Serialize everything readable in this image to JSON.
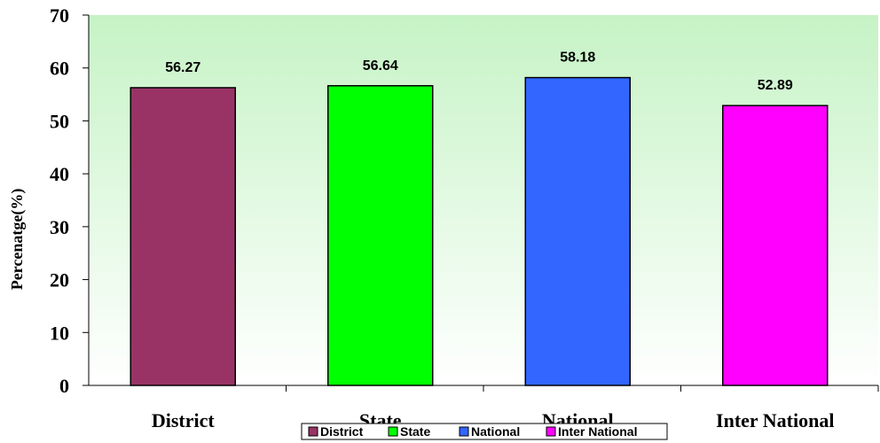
{
  "chart_data": {
    "type": "bar",
    "categories": [
      "District",
      "State",
      "National",
      "Inter National"
    ],
    "values": [
      56.27,
      56.64,
      58.18,
      52.89
    ],
    "value_labels": [
      "56.27",
      "56.64",
      "58.18",
      "52.89"
    ],
    "colors": [
      "#993366",
      "#00ff00",
      "#3366ff",
      "#ff00ff"
    ],
    "title": "",
    "xlabel": "",
    "ylabel": "Percenatge(%)",
    "ylim": [
      0,
      70
    ],
    "yticks": [
      "0",
      "10",
      "20",
      "30",
      "40",
      "50",
      "60",
      "70"
    ],
    "grid": false,
    "legend": {
      "position": "bottom",
      "entries": [
        "District",
        "State",
        "National",
        "Inter National"
      ]
    },
    "background": {
      "gradient_top": "#c6f3c6",
      "gradient_bottom": "#ffffff"
    }
  }
}
